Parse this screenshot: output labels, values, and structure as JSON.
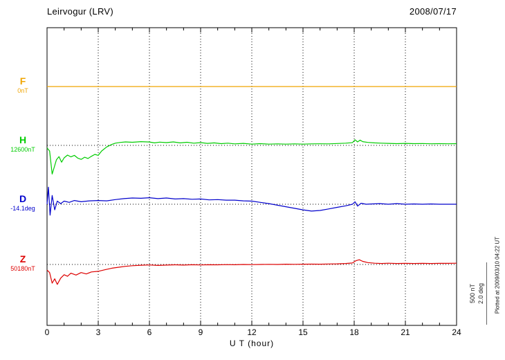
{
  "header": {
    "station": "Leirvogur (LRV)",
    "date": "2008/07/17"
  },
  "axis": {
    "x_label": "U T (hour)",
    "x_tick_labels": [
      "0",
      "3",
      "6",
      "9",
      "12",
      "15",
      "18",
      "21",
      "24"
    ],
    "x_min": 0,
    "x_max": 24
  },
  "scale_bar": {
    "line1": "500 nT",
    "line2": "2.0 deg"
  },
  "footer_note": "Plotted at 2009/03/10 04:22 UT",
  "chart_data": {
    "type": "line",
    "title": "Leirvogur (LRV) magnetogram",
    "subtitle": "2008/07/17",
    "xlabel": "U T (hour)",
    "x_range": [
      0,
      24
    ],
    "grid": "dotted vertical every 3 h, dotted baseline per trace",
    "legend_position": "left margin",
    "scale": {
      "bar_nT": 500,
      "bar_deg": 2.0
    },
    "series": [
      {
        "name": "F",
        "baseline_label": "0nT",
        "unit": "nT",
        "color": "#f0a500",
        "points": [
          [
            0,
            0
          ],
          [
            24,
            0
          ]
        ]
      },
      {
        "name": "H",
        "baseline_label": "12600nT",
        "unit": "nT",
        "color": "#00cc00",
        "points": [
          [
            0,
            -20
          ],
          [
            0.15,
            -45
          ],
          [
            0.3,
            -230
          ],
          [
            0.42,
            -175
          ],
          [
            0.55,
            -115
          ],
          [
            0.7,
            -90
          ],
          [
            0.85,
            -135
          ],
          [
            1,
            -100
          ],
          [
            1.2,
            -78
          ],
          [
            1.4,
            -92
          ],
          [
            1.6,
            -80
          ],
          [
            1.8,
            -102
          ],
          [
            2,
            -112
          ],
          [
            2.2,
            -95
          ],
          [
            2.4,
            -105
          ],
          [
            2.6,
            -88
          ],
          [
            2.8,
            -72
          ],
          [
            3,
            -80
          ],
          [
            3.2,
            -45
          ],
          [
            3.5,
            -12
          ],
          [
            3.8,
            8
          ],
          [
            4,
            18
          ],
          [
            4.3,
            24
          ],
          [
            4.6,
            28
          ],
          [
            5,
            25
          ],
          [
            5.5,
            30
          ],
          [
            6,
            27
          ],
          [
            6.3,
            20
          ],
          [
            6.6,
            26
          ],
          [
            7,
            22
          ],
          [
            7.4,
            28
          ],
          [
            7.8,
            20
          ],
          [
            8.2,
            25
          ],
          [
            8.6,
            18
          ],
          [
            9,
            22
          ],
          [
            9.4,
            16
          ],
          [
            9.8,
            20
          ],
          [
            10.2,
            14
          ],
          [
            10.6,
            18
          ],
          [
            11,
            12
          ],
          [
            11.5,
            16
          ],
          [
            12,
            10
          ],
          [
            12.5,
            14
          ],
          [
            13,
            10
          ],
          [
            13.5,
            12
          ],
          [
            14,
            10
          ],
          [
            14.5,
            12
          ],
          [
            15,
            10
          ],
          [
            15.5,
            12
          ],
          [
            16,
            13
          ],
          [
            16.5,
            12
          ],
          [
            17,
            15
          ],
          [
            17.5,
            18
          ],
          [
            17.9,
            22
          ],
          [
            18.05,
            45
          ],
          [
            18.2,
            28
          ],
          [
            18.35,
            42
          ],
          [
            18.5,
            30
          ],
          [
            18.8,
            24
          ],
          [
            19.2,
            20
          ],
          [
            19.6,
            18
          ],
          [
            20,
            16
          ],
          [
            20.5,
            14
          ],
          [
            21,
            16
          ],
          [
            21.5,
            14
          ],
          [
            22,
            15
          ],
          [
            22.5,
            13
          ],
          [
            23,
            14
          ],
          [
            23.5,
            13
          ],
          [
            24,
            14
          ]
        ]
      },
      {
        "name": "D",
        "baseline_label": "-14.1deg",
        "unit": "deg",
        "color": "#0000cc",
        "points": [
          [
            0,
            0
          ],
          [
            0.08,
            0.55
          ],
          [
            0.18,
            -0.35
          ],
          [
            0.3,
            0.28
          ],
          [
            0.45,
            -0.18
          ],
          [
            0.6,
            0.1
          ],
          [
            0.8,
            0.02
          ],
          [
            1,
            0.1
          ],
          [
            1.3,
            0.06
          ],
          [
            1.6,
            0.12
          ],
          [
            2,
            0.08
          ],
          [
            2.5,
            0.11
          ],
          [
            3,
            0.12
          ],
          [
            3.5,
            0.11
          ],
          [
            4,
            0.15
          ],
          [
            4.5,
            0.18
          ],
          [
            5,
            0.2
          ],
          [
            5.5,
            0.19
          ],
          [
            6,
            0.21
          ],
          [
            6.5,
            0.18
          ],
          [
            7,
            0.2
          ],
          [
            7.5,
            0.17
          ],
          [
            8,
            0.18
          ],
          [
            8.5,
            0.16
          ],
          [
            9,
            0.17
          ],
          [
            9.5,
            0.14
          ],
          [
            10,
            0.15
          ],
          [
            10.5,
            0.13
          ],
          [
            11,
            0.13
          ],
          [
            11.5,
            0.11
          ],
          [
            12,
            0.1
          ],
          [
            12.5,
            0.06
          ],
          [
            13,
            0.02
          ],
          [
            13.5,
            -0.03
          ],
          [
            14,
            -0.08
          ],
          [
            14.5,
            -0.13
          ],
          [
            15,
            -0.18
          ],
          [
            15.5,
            -0.22
          ],
          [
            16,
            -0.2
          ],
          [
            16.5,
            -0.15
          ],
          [
            17,
            -0.1
          ],
          [
            17.5,
            -0.05
          ],
          [
            17.9,
            0
          ],
          [
            18.05,
            0.08
          ],
          [
            18.2,
            -0.06
          ],
          [
            18.4,
            0.03
          ],
          [
            18.7,
            0
          ],
          [
            19,
            0.01
          ],
          [
            19.5,
            0.02
          ],
          [
            20,
            0
          ],
          [
            20.5,
            0.02
          ],
          [
            21,
            0
          ],
          [
            21.5,
            0.01
          ],
          [
            22,
            0
          ],
          [
            22.5,
            0.01
          ],
          [
            23,
            0
          ],
          [
            23.5,
            0
          ],
          [
            24,
            0
          ]
        ]
      },
      {
        "name": "Z",
        "baseline_label": "50180nT",
        "unit": "nT",
        "color": "#dd0000",
        "points": [
          [
            0,
            -45
          ],
          [
            0.15,
            -65
          ],
          [
            0.3,
            -150
          ],
          [
            0.45,
            -115
          ],
          [
            0.6,
            -160
          ],
          [
            0.8,
            -110
          ],
          [
            1,
            -82
          ],
          [
            1.2,
            -95
          ],
          [
            1.4,
            -70
          ],
          [
            1.7,
            -85
          ],
          [
            2,
            -65
          ],
          [
            2.3,
            -76
          ],
          [
            2.6,
            -60
          ],
          [
            3,
            -55
          ],
          [
            3.4,
            -42
          ],
          [
            3.8,
            -30
          ],
          [
            4.2,
            -22
          ],
          [
            4.6,
            -15
          ],
          [
            5,
            -10
          ],
          [
            5.5,
            -6
          ],
          [
            6,
            -4
          ],
          [
            6.5,
            -8
          ],
          [
            7,
            -5
          ],
          [
            7.5,
            -3
          ],
          [
            8,
            -5
          ],
          [
            8.5,
            -2
          ],
          [
            9,
            -4
          ],
          [
            9.5,
            -2
          ],
          [
            10,
            -3
          ],
          [
            10.5,
            -1
          ],
          [
            11,
            -2
          ],
          [
            11.5,
            0
          ],
          [
            12,
            -1
          ],
          [
            12.5,
            0
          ],
          [
            13,
            1
          ],
          [
            13.5,
            0
          ],
          [
            14,
            2
          ],
          [
            14.5,
            1
          ],
          [
            15,
            2
          ],
          [
            15.5,
            3
          ],
          [
            16,
            2
          ],
          [
            16.5,
            4
          ],
          [
            17,
            5
          ],
          [
            17.5,
            8
          ],
          [
            17.9,
            12
          ],
          [
            18.1,
            30
          ],
          [
            18.3,
            38
          ],
          [
            18.5,
            25
          ],
          [
            18.8,
            15
          ],
          [
            19.2,
            10
          ],
          [
            19.6,
            8
          ],
          [
            20,
            10
          ],
          [
            20.5,
            8
          ],
          [
            21,
            9
          ],
          [
            21.5,
            8
          ],
          [
            22,
            9
          ],
          [
            22.5,
            8
          ],
          [
            23,
            9
          ],
          [
            23.5,
            9
          ],
          [
            24,
            10
          ]
        ]
      }
    ]
  }
}
